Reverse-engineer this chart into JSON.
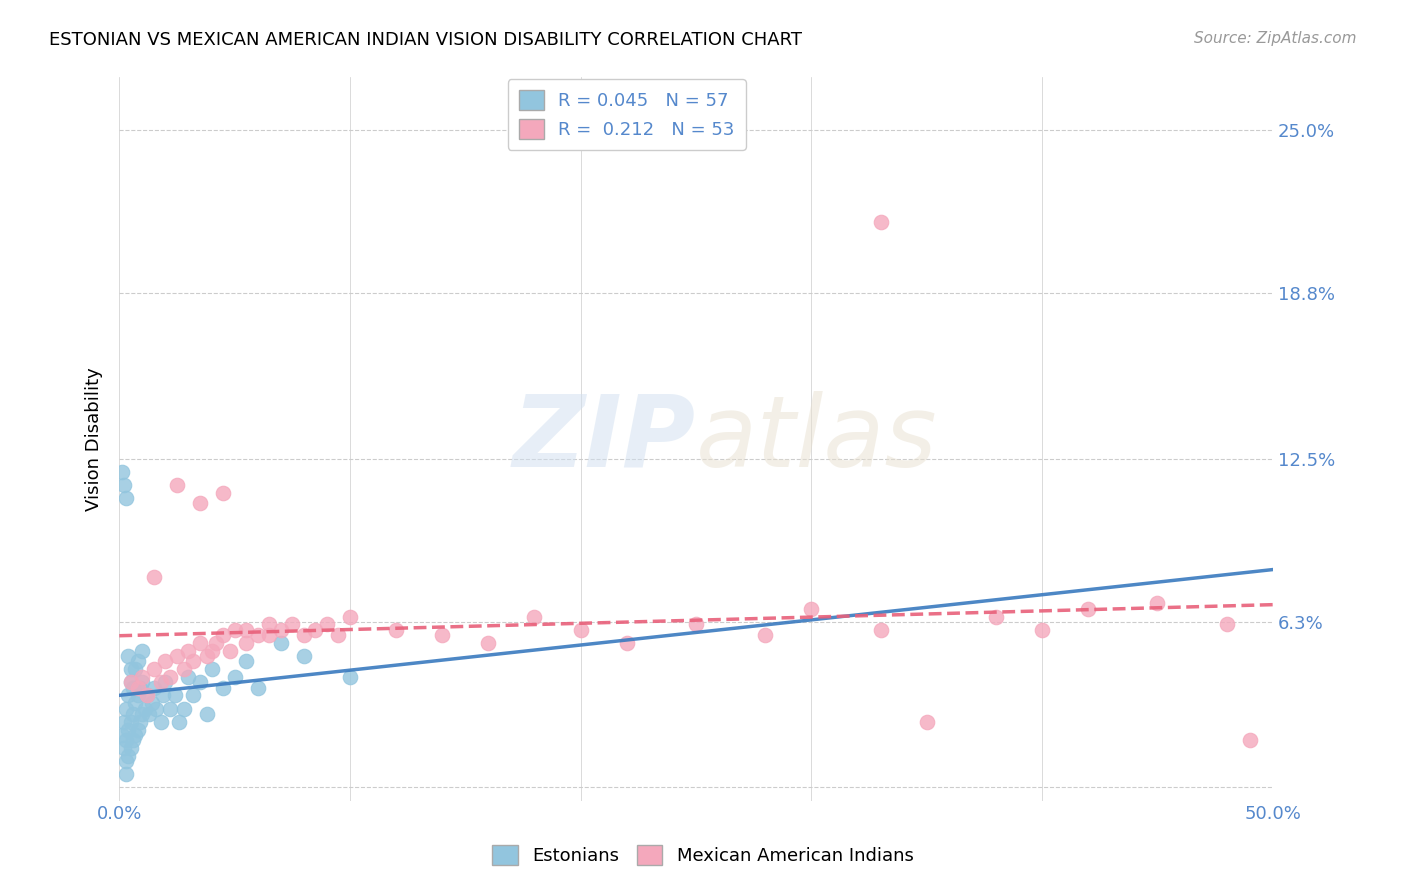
{
  "title": "ESTONIAN VS MEXICAN AMERICAN INDIAN VISION DISABILITY CORRELATION CHART",
  "source": "Source: ZipAtlas.com",
  "ylabel": "Vision Disability",
  "xlim": [
    0.0,
    0.5
  ],
  "ylim": [
    -0.005,
    0.27
  ],
  "xticks": [
    0.0,
    0.1,
    0.2,
    0.3,
    0.4,
    0.5
  ],
  "xticklabels": [
    "0.0%",
    "",
    "",
    "",
    "",
    "50.0%"
  ],
  "ytick_positions": [
    0.0,
    0.063,
    0.125,
    0.188,
    0.25
  ],
  "ytick_labels": [
    "",
    "6.3%",
    "12.5%",
    "18.8%",
    "25.0%"
  ],
  "grid_color": "#cccccc",
  "background_color": "#ffffff",
  "watermark_zip": "ZIP",
  "watermark_atlas": "atlas",
  "legend_R1": "R = 0.045",
  "legend_N1": "N = 57",
  "legend_R2": "R =  0.212",
  "legend_N2": "N = 53",
  "blue_color": "#92c5de",
  "pink_color": "#f4a8bc",
  "blue_line_color": "#3a7abf",
  "pink_line_color": "#e8607a",
  "label_color": "#5588cc",
  "legend_label1": "Estonians",
  "legend_label2": "Mexican American Indians",
  "blue_x": [
    0.001,
    0.002,
    0.002,
    0.003,
    0.003,
    0.003,
    0.004,
    0.004,
    0.004,
    0.005,
    0.005,
    0.005,
    0.006,
    0.006,
    0.006,
    0.007,
    0.007,
    0.007,
    0.008,
    0.008,
    0.008,
    0.009,
    0.009,
    0.01,
    0.01,
    0.01,
    0.011,
    0.012,
    0.013,
    0.014,
    0.015,
    0.016,
    0.018,
    0.019,
    0.02,
    0.022,
    0.024,
    0.026,
    0.028,
    0.03,
    0.032,
    0.035,
    0.038,
    0.04,
    0.045,
    0.05,
    0.055,
    0.06,
    0.07,
    0.08,
    0.001,
    0.002,
    0.003,
    0.004,
    0.005,
    0.003,
    0.1
  ],
  "blue_y": [
    0.02,
    0.015,
    0.025,
    0.01,
    0.018,
    0.03,
    0.012,
    0.022,
    0.035,
    0.015,
    0.025,
    0.04,
    0.018,
    0.028,
    0.038,
    0.02,
    0.032,
    0.045,
    0.022,
    0.035,
    0.048,
    0.025,
    0.038,
    0.028,
    0.04,
    0.052,
    0.03,
    0.035,
    0.028,
    0.032,
    0.038,
    0.03,
    0.025,
    0.035,
    0.04,
    0.03,
    0.035,
    0.025,
    0.03,
    0.042,
    0.035,
    0.04,
    0.028,
    0.045,
    0.038,
    0.042,
    0.048,
    0.038,
    0.055,
    0.05,
    0.12,
    0.115,
    0.11,
    0.05,
    0.045,
    0.005,
    0.042
  ],
  "pink_x": [
    0.005,
    0.008,
    0.01,
    0.012,
    0.015,
    0.018,
    0.02,
    0.022,
    0.025,
    0.028,
    0.03,
    0.032,
    0.035,
    0.038,
    0.04,
    0.042,
    0.045,
    0.048,
    0.05,
    0.055,
    0.06,
    0.065,
    0.07,
    0.08,
    0.09,
    0.1,
    0.12,
    0.14,
    0.16,
    0.18,
    0.2,
    0.22,
    0.25,
    0.28,
    0.3,
    0.33,
    0.35,
    0.38,
    0.4,
    0.42,
    0.45,
    0.48,
    0.49,
    0.025,
    0.035,
    0.045,
    0.055,
    0.065,
    0.075,
    0.085,
    0.095,
    0.015,
    0.33
  ],
  "pink_y": [
    0.04,
    0.038,
    0.042,
    0.035,
    0.045,
    0.04,
    0.048,
    0.042,
    0.05,
    0.045,
    0.052,
    0.048,
    0.055,
    0.05,
    0.052,
    0.055,
    0.058,
    0.052,
    0.06,
    0.055,
    0.058,
    0.062,
    0.06,
    0.058,
    0.062,
    0.065,
    0.06,
    0.058,
    0.055,
    0.065,
    0.06,
    0.055,
    0.062,
    0.058,
    0.068,
    0.06,
    0.025,
    0.065,
    0.06,
    0.068,
    0.07,
    0.062,
    0.018,
    0.115,
    0.108,
    0.112,
    0.06,
    0.058,
    0.062,
    0.06,
    0.058,
    0.08,
    0.215
  ]
}
